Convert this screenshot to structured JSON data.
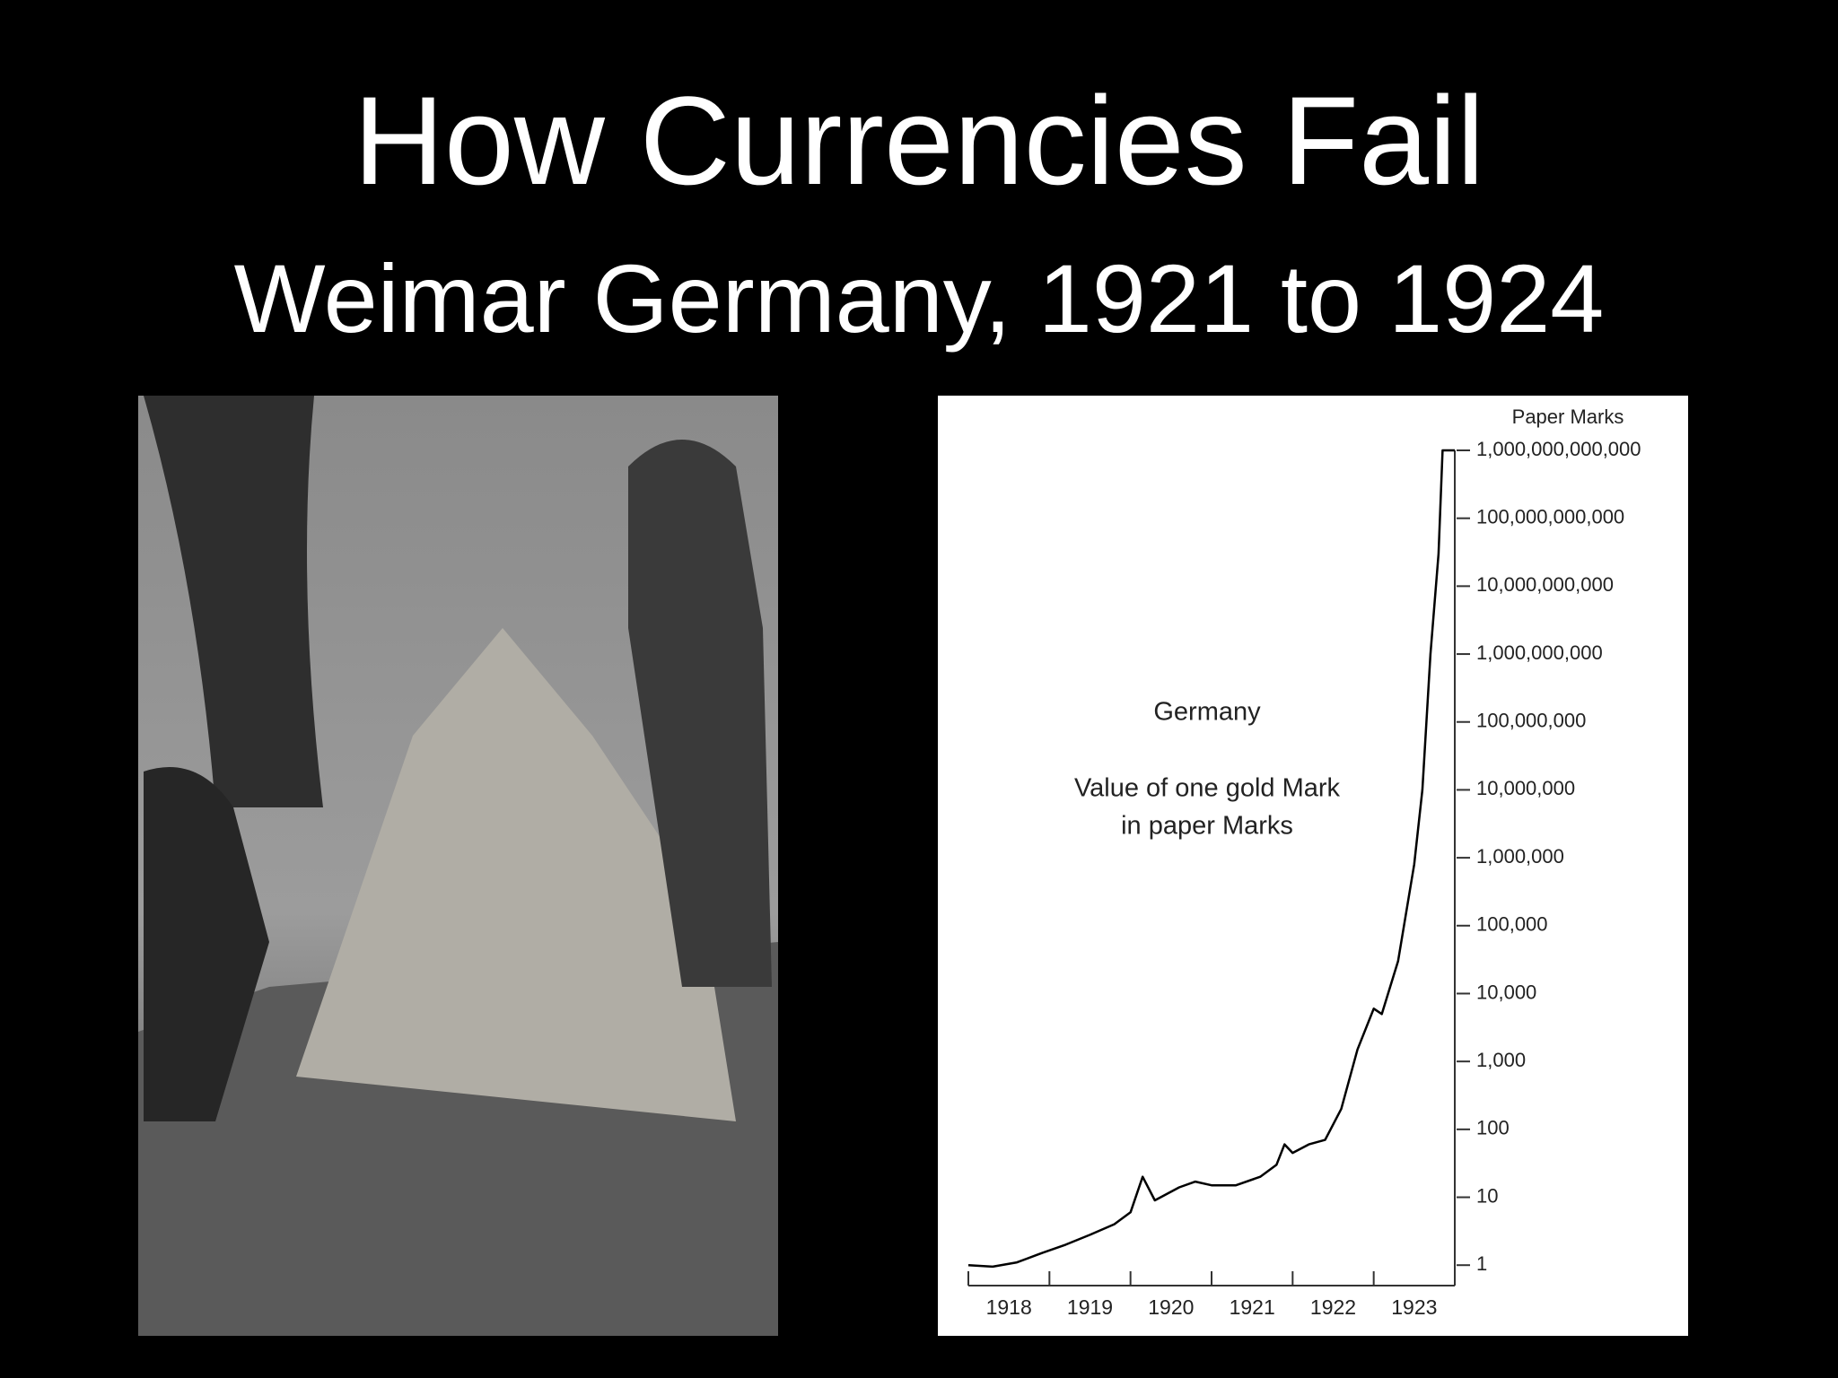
{
  "slide": {
    "title": "How Currencies Fail",
    "subtitle": "Weimar Germany, 1921 to 1924"
  },
  "chart_data": {
    "type": "line",
    "y_label": "Paper Marks",
    "annotations": [
      "Germany",
      "Value of one gold Mark",
      "in paper Marks"
    ],
    "x": [
      1918.0,
      1918.3,
      1918.6,
      1918.9,
      1919.2,
      1919.5,
      1919.8,
      1920.0,
      1920.15,
      1920.3,
      1920.6,
      1920.8,
      1921.0,
      1921.3,
      1921.6,
      1921.8,
      1921.9,
      1922.0,
      1922.2,
      1922.4,
      1922.6,
      1922.8,
      1923.0,
      1923.1,
      1923.3,
      1923.5,
      1923.6,
      1923.7,
      1923.8,
      1923.85,
      1924.0
    ],
    "values": [
      1.0,
      0.95,
      1.1,
      1.5,
      2,
      2.8,
      4,
      6,
      20,
      9,
      14,
      17,
      15,
      15,
      20,
      30,
      60,
      45,
      60,
      70,
      200,
      1500,
      6000,
      5000,
      30000,
      800000,
      10000000,
      1000000000,
      30000000000,
      1000000000000,
      1000000000000
    ],
    "color": "#000000",
    "xlim": [
      1918,
      1924
    ],
    "xticks": [
      {
        "value": 1918.5,
        "label": "1918"
      },
      {
        "value": 1919.5,
        "label": "1919"
      },
      {
        "value": 1920.5,
        "label": "1920"
      },
      {
        "value": 1921.5,
        "label": "1921"
      },
      {
        "value": 1922.5,
        "label": "1922"
      },
      {
        "value": 1923.5,
        "label": "1923"
      }
    ],
    "xminor_ticks": [
      1918,
      1919,
      1920,
      1921,
      1922,
      1923,
      1924
    ],
    "ylim": [
      0.5,
      1000000000000
    ],
    "yscale": "log",
    "yticks": [
      {
        "value": 1,
        "label": "1"
      },
      {
        "value": 10,
        "label": "10"
      },
      {
        "value": 100,
        "label": "100"
      },
      {
        "value": 1000,
        "label": "1,000"
      },
      {
        "value": 10000,
        "label": "10,000"
      },
      {
        "value": 100000,
        "label": "100,000"
      },
      {
        "value": 1000000,
        "label": "1,000,000"
      },
      {
        "value": 10000000,
        "label": "10,000,000"
      },
      {
        "value": 100000000,
        "label": "100,000,000"
      },
      {
        "value": 1000000000,
        "label": "1,000,000,000"
      },
      {
        "value": 10000000000,
        "label": "10,000,000,000"
      },
      {
        "value": 100000000000,
        "label": "100,000,000,000"
      },
      {
        "value": 1000000000000,
        "label": "1,000,000,000,000"
      }
    ]
  }
}
